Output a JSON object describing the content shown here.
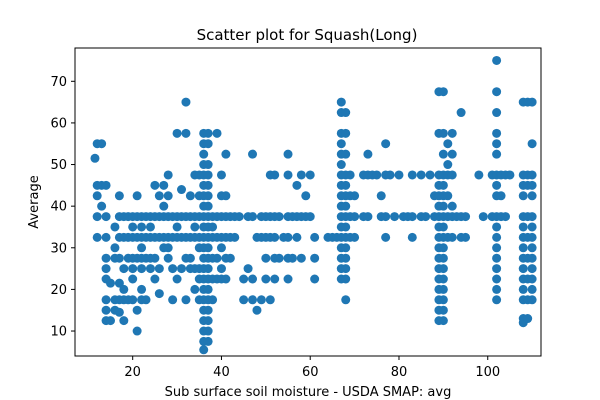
{
  "chart_data": {
    "type": "scatter",
    "title": "Scatter plot for Squash(Long)",
    "xlabel": "Sub surface soil moisture - USDA SMAP: avg",
    "ylabel": "Average",
    "xlim": [
      7,
      112
    ],
    "ylim": [
      4,
      78
    ],
    "xticks": [
      20,
      40,
      60,
      80,
      100
    ],
    "yticks": [
      10,
      20,
      30,
      40,
      50,
      60,
      70
    ],
    "grid": false,
    "marker_color": "#1f77b4",
    "points": [
      [
        11.5,
        51.5
      ],
      [
        12,
        55
      ],
      [
        13,
        55
      ],
      [
        13,
        45
      ],
      [
        12,
        42.5
      ],
      [
        13,
        40
      ],
      [
        12,
        37.5
      ],
      [
        14,
        37.5
      ],
      [
        12,
        32.5
      ],
      [
        14,
        32.5
      ],
      [
        12,
        45
      ],
      [
        14,
        45
      ],
      [
        14,
        27.5
      ],
      [
        14,
        25
      ],
      [
        14,
        22.5
      ],
      [
        15,
        21.5
      ],
      [
        14,
        17.5
      ],
      [
        14,
        15
      ],
      [
        14,
        12.5
      ],
      [
        15,
        12.5
      ],
      [
        16,
        35
      ],
      [
        16,
        30
      ],
      [
        16,
        27.5
      ],
      [
        16,
        17.5
      ],
      [
        16,
        15
      ],
      [
        17,
        42.5
      ],
      [
        17,
        37.5
      ],
      [
        17,
        32.5
      ],
      [
        17,
        27.5
      ],
      [
        17,
        21.5
      ],
      [
        17,
        17.5
      ],
      [
        17,
        14.5
      ],
      [
        18,
        37.5
      ],
      [
        18,
        32.5
      ],
      [
        18,
        25
      ],
      [
        18,
        20
      ],
      [
        18,
        17.5
      ],
      [
        18,
        12.5
      ],
      [
        19,
        37.5
      ],
      [
        19,
        32.5
      ],
      [
        19,
        27.5
      ],
      [
        19,
        17.5
      ],
      [
        20,
        37.5
      ],
      [
        20,
        35
      ],
      [
        20,
        32.5
      ],
      [
        20,
        27.5
      ],
      [
        20,
        25
      ],
      [
        20,
        22.5
      ],
      [
        20,
        17.5
      ],
      [
        21,
        42.5
      ],
      [
        21,
        37.5
      ],
      [
        21,
        32.5
      ],
      [
        21,
        27.5
      ],
      [
        21,
        15
      ],
      [
        21,
        10
      ],
      [
        22,
        37.5
      ],
      [
        22,
        35
      ],
      [
        22,
        32.5
      ],
      [
        22,
        30
      ],
      [
        22,
        27.5
      ],
      [
        22,
        25
      ],
      [
        22,
        20
      ],
      [
        22,
        17.5
      ],
      [
        23,
        37.5
      ],
      [
        23,
        32.5
      ],
      [
        23,
        27.5
      ],
      [
        23,
        17.5
      ],
      [
        24,
        37.5
      ],
      [
        24,
        35
      ],
      [
        24,
        32.5
      ],
      [
        24,
        27.5
      ],
      [
        24,
        25
      ],
      [
        25,
        45
      ],
      [
        25,
        37.5
      ],
      [
        25,
        32.5
      ],
      [
        25,
        27.5
      ],
      [
        25,
        22.5
      ],
      [
        26,
        42.5
      ],
      [
        26,
        37.5
      ],
      [
        26,
        32.5
      ],
      [
        26,
        25
      ],
      [
        26,
        19
      ],
      [
        27,
        45
      ],
      [
        27,
        40
      ],
      [
        27,
        37.5
      ],
      [
        27,
        32.5
      ],
      [
        27,
        30
      ],
      [
        28,
        47.5
      ],
      [
        28,
        42.5
      ],
      [
        28,
        37.5
      ],
      [
        28,
        32.5
      ],
      [
        28,
        30
      ],
      [
        28,
        27.5
      ],
      [
        29,
        37.5
      ],
      [
        29,
        32.5
      ],
      [
        29,
        25
      ],
      [
        29,
        17.5
      ],
      [
        30,
        57.5
      ],
      [
        30,
        37.5
      ],
      [
        30,
        35
      ],
      [
        30,
        32.5
      ],
      [
        30,
        22.5
      ],
      [
        31,
        44
      ],
      [
        31,
        37.5
      ],
      [
        31,
        32.5
      ],
      [
        31,
        25
      ],
      [
        32,
        65
      ],
      [
        32,
        57.5
      ],
      [
        32,
        37.5
      ],
      [
        32,
        32.5
      ],
      [
        32,
        27.5
      ],
      [
        32,
        17.5
      ],
      [
        33,
        42.5
      ],
      [
        33,
        37.5
      ],
      [
        33,
        32.5
      ],
      [
        33,
        27.5
      ],
      [
        33,
        25
      ],
      [
        34,
        47.5
      ],
      [
        34,
        37.5
      ],
      [
        34,
        35
      ],
      [
        34,
        32.5
      ],
      [
        34,
        25
      ],
      [
        34,
        20
      ],
      [
        35,
        47.5
      ],
      [
        35,
        42.5
      ],
      [
        35,
        37.5
      ],
      [
        35,
        32.5
      ],
      [
        35,
        30
      ],
      [
        35,
        25
      ],
      [
        35,
        22.5
      ],
      [
        35,
        17.5
      ],
      [
        36,
        57.5
      ],
      [
        36,
        55
      ],
      [
        36,
        52.5
      ],
      [
        36,
        50
      ],
      [
        36,
        47.5
      ],
      [
        36,
        45
      ],
      [
        36,
        42.5
      ],
      [
        36,
        40
      ],
      [
        36,
        37.5
      ],
      [
        36,
        35
      ],
      [
        36,
        32.5
      ],
      [
        36,
        30
      ],
      [
        36,
        27.5
      ],
      [
        36,
        25
      ],
      [
        36,
        22.5
      ],
      [
        36,
        20
      ],
      [
        36,
        17.5
      ],
      [
        36,
        15
      ],
      [
        36,
        12.5
      ],
      [
        36,
        10
      ],
      [
        36,
        7.5
      ],
      [
        36,
        5.5
      ],
      [
        37,
        57.5
      ],
      [
        37,
        55
      ],
      [
        37,
        50
      ],
      [
        37,
        47.5
      ],
      [
        37,
        45
      ],
      [
        37,
        42.5
      ],
      [
        37,
        40
      ],
      [
        37,
        37.5
      ],
      [
        37,
        35
      ],
      [
        37,
        32.5
      ],
      [
        37,
        30
      ],
      [
        37,
        27.5
      ],
      [
        37,
        25
      ],
      [
        37,
        22.5
      ],
      [
        37,
        20
      ],
      [
        37,
        17.5
      ],
      [
        37,
        15
      ],
      [
        37,
        12.5
      ],
      [
        37,
        10
      ],
      [
        37,
        7.5
      ],
      [
        38,
        37.5
      ],
      [
        38,
        35
      ],
      [
        38,
        32.5
      ],
      [
        38,
        27.5
      ],
      [
        38,
        22.5
      ],
      [
        38,
        17.5
      ],
      [
        39,
        57.5
      ],
      [
        39,
        37.5
      ],
      [
        39,
        32.5
      ],
      [
        39,
        27.5
      ],
      [
        39,
        22.5
      ],
      [
        40,
        47.5
      ],
      [
        40,
        42.5
      ],
      [
        40,
        37.5
      ],
      [
        40,
        32.5
      ],
      [
        40,
        30
      ],
      [
        40,
        25
      ],
      [
        40,
        22.5
      ],
      [
        41,
        52.5
      ],
      [
        41,
        42.5
      ],
      [
        41,
        37.5
      ],
      [
        41,
        32.5
      ],
      [
        41,
        27.5
      ],
      [
        41,
        22.5
      ],
      [
        42,
        37.5
      ],
      [
        42,
        32.5
      ],
      [
        42,
        27.5
      ],
      [
        43,
        37.5
      ],
      [
        43,
        32.5
      ],
      [
        44,
        37.5
      ],
      [
        45,
        22.5
      ],
      [
        45,
        17.5
      ],
      [
        46,
        37.5
      ],
      [
        46,
        25
      ],
      [
        47,
        52.5
      ],
      [
        47,
        37.5
      ],
      [
        47,
        22.5
      ],
      [
        47,
        17.5
      ],
      [
        48,
        15
      ],
      [
        48,
        32.5
      ],
      [
        49,
        37.5
      ],
      [
        49,
        32.5
      ],
      [
        49,
        17.5
      ],
      [
        50,
        37.5
      ],
      [
        50,
        32.5
      ],
      [
        50,
        27.5
      ],
      [
        50,
        22.5
      ],
      [
        51,
        47.5
      ],
      [
        51,
        37.5
      ],
      [
        51,
        32.5
      ],
      [
        51,
        17.5
      ],
      [
        52,
        47.5
      ],
      [
        52,
        37.5
      ],
      [
        52,
        32.5
      ],
      [
        52,
        27.5
      ],
      [
        52,
        22.5
      ],
      [
        53,
        37.5
      ],
      [
        53,
        27.5
      ],
      [
        54,
        32.5
      ],
      [
        55,
        52.5
      ],
      [
        55,
        47.5
      ],
      [
        55,
        37.5
      ],
      [
        55,
        32.5
      ],
      [
        55,
        27.5
      ],
      [
        55,
        22.5
      ],
      [
        56,
        37.5
      ],
      [
        56,
        27.5
      ],
      [
        57,
        45
      ],
      [
        57,
        37.5
      ],
      [
        57,
        32.5
      ],
      [
        58,
        47.5
      ],
      [
        58,
        37.5
      ],
      [
        58,
        27.5
      ],
      [
        59,
        42.5
      ],
      [
        59,
        37.5
      ],
      [
        60,
        47.5
      ],
      [
        60,
        37.5
      ],
      [
        61,
        32.5
      ],
      [
        61,
        27.5
      ],
      [
        61,
        22.5
      ],
      [
        64,
        32.5
      ],
      [
        65,
        32.5
      ],
      [
        66,
        32.5
      ],
      [
        67,
        65
      ],
      [
        67,
        62.5
      ],
      [
        67,
        57.5
      ],
      [
        67,
        55
      ],
      [
        67,
        52.5
      ],
      [
        67,
        50
      ],
      [
        67,
        47.5
      ],
      [
        67,
        45
      ],
      [
        67,
        42.5
      ],
      [
        67,
        40
      ],
      [
        67,
        37.5
      ],
      [
        67,
        35
      ],
      [
        67,
        32.5
      ],
      [
        67,
        30
      ],
      [
        67,
        27.5
      ],
      [
        67,
        25
      ],
      [
        67,
        22.5
      ],
      [
        68,
        62.5
      ],
      [
        68,
        57.5
      ],
      [
        68,
        52.5
      ],
      [
        68,
        47.5
      ],
      [
        68,
        45
      ],
      [
        68,
        42.5
      ],
      [
        68,
        40
      ],
      [
        68,
        37.5
      ],
      [
        68,
        35
      ],
      [
        68,
        32.5
      ],
      [
        68,
        30
      ],
      [
        68,
        27.5
      ],
      [
        68,
        25
      ],
      [
        68,
        22.5
      ],
      [
        68,
        17.5
      ],
      [
        69,
        47.5
      ],
      [
        69,
        42.5
      ],
      [
        69,
        37.5
      ],
      [
        69,
        32.5
      ],
      [
        70,
        42.5
      ],
      [
        70,
        37.5
      ],
      [
        70,
        32.5
      ],
      [
        72,
        47.5
      ],
      [
        72,
        37.5
      ],
      [
        73,
        52.5
      ],
      [
        73,
        47.5
      ],
      [
        73,
        37.5
      ],
      [
        74,
        47.5
      ],
      [
        75,
        47.5
      ],
      [
        76,
        42.5
      ],
      [
        76,
        37.5
      ],
      [
        77,
        55
      ],
      [
        77,
        47.5
      ],
      [
        77,
        37.5
      ],
      [
        77,
        32.5
      ],
      [
        78,
        47.5
      ],
      [
        79,
        37.5
      ],
      [
        80,
        47.5
      ],
      [
        81,
        37.5
      ],
      [
        82,
        37.5
      ],
      [
        83,
        47.5
      ],
      [
        83,
        37.5
      ],
      [
        83,
        32.5
      ],
      [
        85,
        47.5
      ],
      [
        85,
        37.5
      ],
      [
        86,
        37.5
      ],
      [
        87,
        47.5
      ],
      [
        88,
        42.5
      ],
      [
        88,
        37.5
      ],
      [
        89,
        67.5
      ],
      [
        89,
        57.5
      ],
      [
        89,
        47.5
      ],
      [
        89,
        45
      ],
      [
        89,
        42.5
      ],
      [
        89,
        40
      ],
      [
        89,
        37.5
      ],
      [
        89,
        35
      ],
      [
        89,
        32.5
      ],
      [
        89,
        30
      ],
      [
        89,
        27.5
      ],
      [
        89,
        25
      ],
      [
        89,
        22.5
      ],
      [
        89,
        20
      ],
      [
        89,
        17.5
      ],
      [
        89,
        15
      ],
      [
        89,
        12.5
      ],
      [
        90,
        67.5
      ],
      [
        90,
        57.5
      ],
      [
        90,
        52.5
      ],
      [
        90,
        47.5
      ],
      [
        90,
        45
      ],
      [
        90,
        42.5
      ],
      [
        90,
        40
      ],
      [
        90,
        37.5
      ],
      [
        90,
        35
      ],
      [
        90,
        32.5
      ],
      [
        90,
        30
      ],
      [
        90,
        27.5
      ],
      [
        90,
        25
      ],
      [
        90,
        22.5
      ],
      [
        90,
        20
      ],
      [
        90,
        17.5
      ],
      [
        90,
        15
      ],
      [
        90,
        12.5
      ],
      [
        91,
        55
      ],
      [
        91,
        50
      ],
      [
        91,
        47.5
      ],
      [
        91,
        42.5
      ],
      [
        91,
        37.5
      ],
      [
        91,
        32.5
      ],
      [
        92,
        57.5
      ],
      [
        92,
        52.5
      ],
      [
        92,
        47.5
      ],
      [
        92,
        40
      ],
      [
        92,
        37.5
      ],
      [
        92,
        32.5
      ],
      [
        93,
        37.5
      ],
      [
        94,
        62.5
      ],
      [
        94,
        37.5
      ],
      [
        94,
        32.5
      ],
      [
        95,
        37.5
      ],
      [
        95,
        32.5
      ],
      [
        98,
        47.5
      ],
      [
        99,
        37.5
      ],
      [
        101,
        47.5
      ],
      [
        101,
        37.5
      ],
      [
        102,
        75
      ],
      [
        102,
        67.5
      ],
      [
        102,
        62.5
      ],
      [
        102,
        57.5
      ],
      [
        102,
        55
      ],
      [
        102,
        52.5
      ],
      [
        102,
        47.5
      ],
      [
        102,
        45
      ],
      [
        102,
        42.5
      ],
      [
        102,
        37.5
      ],
      [
        102,
        35
      ],
      [
        102,
        32.5
      ],
      [
        102,
        30
      ],
      [
        102,
        27.5
      ],
      [
        102,
        25
      ],
      [
        102,
        22.5
      ],
      [
        102,
        20
      ],
      [
        102,
        17.5
      ],
      [
        103,
        47.5
      ],
      [
        103,
        42.5
      ],
      [
        103,
        37.5
      ],
      [
        104,
        47.5
      ],
      [
        104,
        37.5
      ],
      [
        105,
        47.5
      ],
      [
        108,
        65
      ],
      [
        108,
        47.5
      ],
      [
        108,
        45
      ],
      [
        108,
        42.5
      ],
      [
        108,
        37.5
      ],
      [
        108,
        35
      ],
      [
        108,
        32.5
      ],
      [
        108,
        30
      ],
      [
        108,
        27.5
      ],
      [
        108,
        25
      ],
      [
        108,
        22.5
      ],
      [
        108,
        20
      ],
      [
        108,
        17.5
      ],
      [
        108,
        13
      ],
      [
        108,
        12
      ],
      [
        109,
        65
      ],
      [
        109,
        47.5
      ],
      [
        109,
        45
      ],
      [
        109,
        37.5
      ],
      [
        109,
        32.5
      ],
      [
        109,
        27.5
      ],
      [
        109,
        22.5
      ],
      [
        109,
        17.5
      ],
      [
        109,
        13
      ],
      [
        110,
        65
      ],
      [
        110,
        55
      ],
      [
        110,
        47.5
      ],
      [
        110,
        45
      ],
      [
        110,
        42.5
      ],
      [
        110,
        37.5
      ],
      [
        110,
        35
      ],
      [
        110,
        32.5
      ],
      [
        110,
        30
      ],
      [
        110,
        27.5
      ],
      [
        110,
        25
      ],
      [
        110,
        22.5
      ],
      [
        110,
        20
      ],
      [
        110,
        17.5
      ]
    ]
  }
}
